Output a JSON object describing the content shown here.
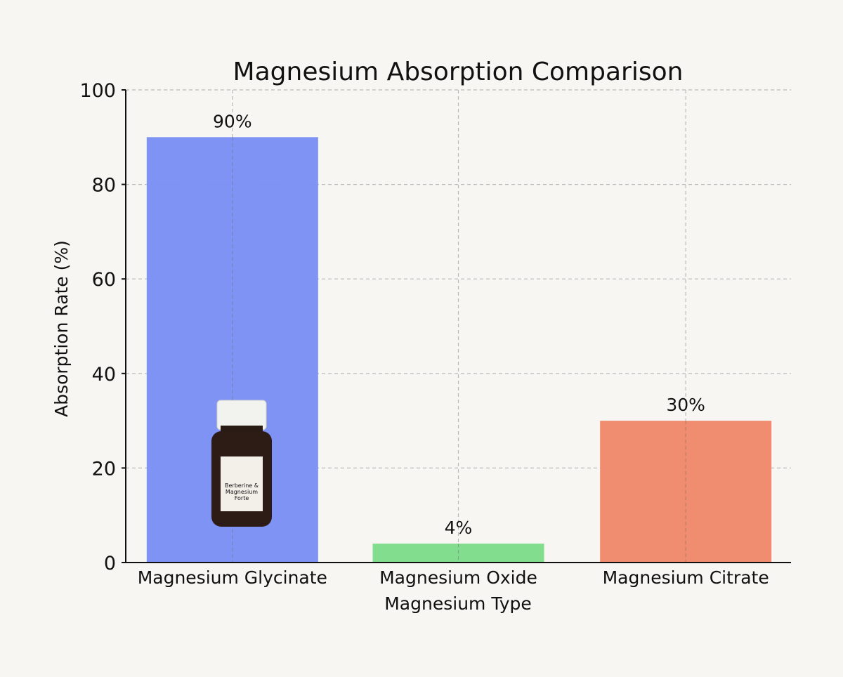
{
  "chart_data": {
    "type": "bar",
    "title": "Magnesium Absorption Comparison",
    "xlabel": "Magnesium Type",
    "ylabel": "Absorption Rate (%)",
    "categories": [
      "Magnesium Glycinate",
      "Magnesium Oxide",
      "Magnesium Citrate"
    ],
    "values": [
      90,
      4,
      30
    ],
    "value_labels": [
      "90%",
      "4%",
      "30%"
    ],
    "colors": [
      "#7b8ff5",
      "#7fdc8a",
      "#f0886a"
    ],
    "ylim": [
      0,
      100
    ],
    "yticks": [
      "0",
      "20",
      "40",
      "60",
      "80",
      "100"
    ],
    "grid": true
  },
  "product": {
    "label_line1": "Berberine &",
    "label_line2": "Magnesium",
    "label_line3": "Forte"
  }
}
